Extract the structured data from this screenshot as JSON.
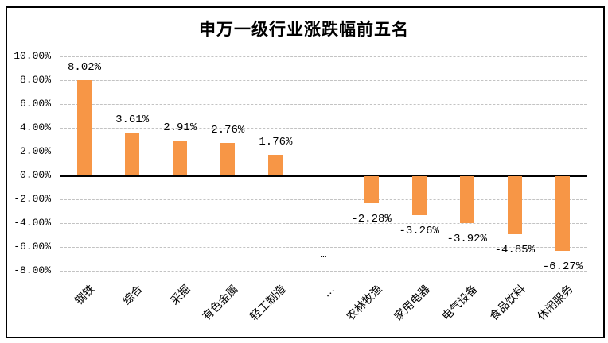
{
  "window": {
    "background_color": "#FFFFFF",
    "border_color": "#000000"
  },
  "chart_data": {
    "type": "bar",
    "title": "申万一级行业涨跌幅前五名",
    "categories": [
      "钢铁",
      "综合",
      "采掘",
      "有色金属",
      "轻工制造",
      "…",
      "农林牧渔",
      "家用电器",
      "电气设备",
      "食品饮料",
      "休闲服务"
    ],
    "values": [
      8.02,
      3.61,
      2.91,
      2.76,
      1.76,
      null,
      -2.28,
      -3.26,
      -3.92,
      -4.85,
      -6.27
    ],
    "data_labels": [
      "8.02%",
      "3.61%",
      "2.91%",
      "2.76%",
      "1.76%",
      "…",
      "-2.28%",
      "-3.26%",
      "-3.92%",
      "-4.85%",
      "-6.27%"
    ],
    "y_tick_labels": [
      "10.00%",
      "8.00%",
      "6.00%",
      "4.00%",
      "2.00%",
      "0.00%",
      "-2.00%",
      "-4.00%",
      "-6.00%",
      "-8.00%"
    ],
    "y_tick_values": [
      10,
      8,
      6,
      4,
      2,
      0,
      -2,
      -4,
      -6,
      -8
    ],
    "ylim": [
      -8,
      10
    ],
    "xlabel": "",
    "ylabel": "",
    "grid": true,
    "legend": false,
    "bar_color": "#F79646",
    "gridline_color": "#C3C3C3",
    "zero_line_color": "#000000",
    "text_color": "#000000"
  }
}
